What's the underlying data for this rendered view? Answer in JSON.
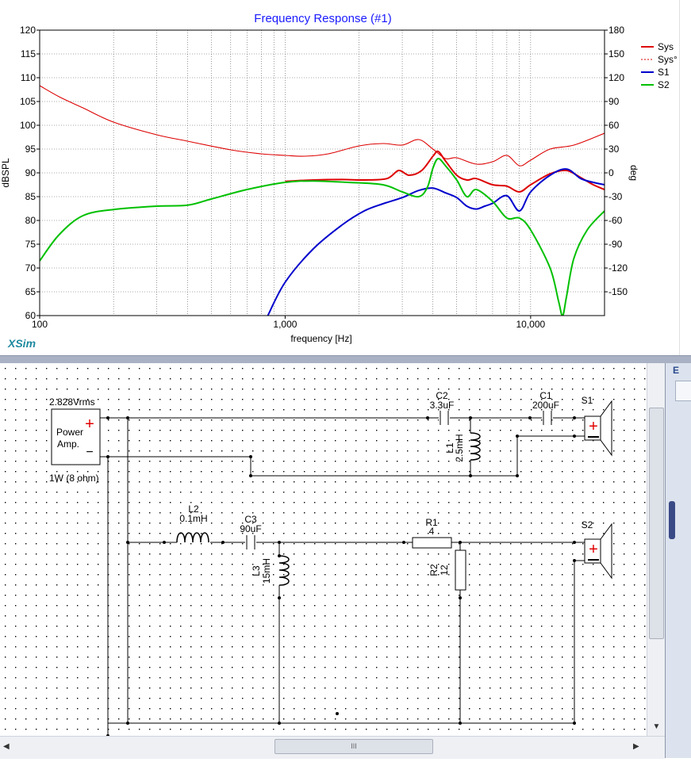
{
  "graph": {
    "title": "Frequency Response (#1)",
    "brand": "XSim",
    "y_left_label": "dBSPL",
    "y_right_label": "deg",
    "x_label": "frequency [Hz]",
    "y_left_ticks": [
      "120",
      "115",
      "110",
      "105",
      "100",
      "95",
      "90",
      "85",
      "80",
      "75",
      "70",
      "65",
      "60"
    ],
    "y_right_ticks": [
      "180",
      "150",
      "120",
      "90",
      "60",
      "30",
      "0",
      "-30",
      "-60",
      "-90",
      "-120",
      "-150"
    ],
    "x_ticks": [
      "100",
      "1,000",
      "10,000"
    ],
    "legend": [
      "Sys",
      "Sys°",
      "S1",
      "S2"
    ]
  },
  "chart_data": {
    "type": "line",
    "title": "Frequency Response (#1)",
    "xlabel": "frequency [Hz]",
    "ylabel": "dBSPL",
    "y2label": "deg",
    "xscale": "log",
    "xlim": [
      100,
      20000
    ],
    "ylim": [
      60,
      120
    ],
    "y2lim": [
      -180,
      180
    ],
    "grid": true,
    "legend_position": "right",
    "series": [
      {
        "name": "Sys",
        "color": "#dd0000",
        "axis": "left",
        "style": "solid",
        "x": [
          1000,
          1300,
          1700,
          2100,
          2600,
          2900,
          3200,
          3600,
          4000,
          4200,
          4500,
          5000,
          5500,
          6000,
          7000,
          8000,
          9000,
          10000,
          12000,
          14000,
          16000,
          18000,
          20000
        ],
        "y": [
          88.2,
          88.5,
          88.6,
          88.5,
          88.8,
          90.5,
          89.5,
          90.5,
          93.5,
          94.5,
          92.5,
          89.5,
          88.5,
          88.8,
          87.5,
          87.2,
          86,
          87.5,
          89.8,
          90.5,
          89,
          87.5,
          86.5
        ]
      },
      {
        "name": "Sys°",
        "color": "#dd0000",
        "axis": "right",
        "style": "dotted",
        "x": [
          100,
          120,
          150,
          200,
          300,
          400,
          600,
          800,
          1000,
          1200,
          1500,
          2000,
          2500,
          3000,
          3500,
          4000,
          4500,
          5000,
          6000,
          7000,
          8000,
          9000,
          10000,
          12000,
          15000,
          20000
        ],
        "y": [
          110,
          96,
          82,
          64,
          48,
          40,
          29,
          24,
          22,
          21,
          24,
          34,
          37,
          35,
          42,
          30,
          18,
          19,
          11,
          14,
          22,
          9,
          16,
          30,
          35,
          50
        ]
      },
      {
        "name": "S1",
        "color": "#0000cc",
        "axis": "left",
        "style": "solid",
        "x": [
          850,
          1000,
          1300,
          1700,
          2100,
          2500,
          3000,
          3500,
          4000,
          4500,
          5000,
          5500,
          6000,
          6500,
          7000,
          8000,
          9000,
          10000,
          12000,
          14000,
          16000,
          18000,
          20000
        ],
        "y": [
          60,
          67,
          74,
          79,
          82,
          83.5,
          84.8,
          86.3,
          86.8,
          85.8,
          84.8,
          83,
          82.4,
          83,
          83.6,
          85.2,
          82,
          86,
          89.5,
          90.8,
          88.8,
          88,
          87.5
        ]
      },
      {
        "name": "S2",
        "color": "#00c000",
        "axis": "left",
        "style": "solid",
        "x": [
          100,
          120,
          150,
          200,
          300,
          400,
          500,
          700,
          1000,
          1300,
          1800,
          2500,
          3000,
          3500,
          3800,
          4000,
          4200,
          4500,
          5000,
          5500,
          6000,
          7000,
          8000,
          9000,
          10000,
          12000,
          13000,
          13500,
          14000,
          15000,
          17000,
          20000
        ],
        "y": [
          71.5,
          77,
          81,
          82.3,
          83,
          83.2,
          84.5,
          86.5,
          88,
          88.3,
          88,
          87.5,
          86,
          85,
          87,
          91,
          93,
          91.5,
          88.5,
          85,
          86.5,
          84,
          80.5,
          80.5,
          78,
          70,
          63,
          60,
          64,
          72,
          78,
          82
        ]
      }
    ]
  },
  "schematic": {
    "source_voltage": "2.828Vrms",
    "amp_label_1": "Power",
    "amp_label_2": "Amp.",
    "amp_rating": "1W (8 ohm)",
    "plus": "+",
    "minus": "−",
    "components": [
      {
        "id": "C2",
        "value": "3.3uF"
      },
      {
        "id": "C1",
        "value": "200uF"
      },
      {
        "id": "L1",
        "value": "2.5mH"
      },
      {
        "id": "L2",
        "value": "0.1mH"
      },
      {
        "id": "C3",
        "value": "90uF"
      },
      {
        "id": "L3",
        "value": "15mH"
      },
      {
        "id": "R1",
        "value": "4"
      },
      {
        "id": "R2",
        "value": "12"
      }
    ],
    "speakers": [
      "S1",
      "S2"
    ]
  },
  "scrollbar": {
    "grip": "III"
  },
  "side_panel": {
    "tab_label": "E"
  }
}
